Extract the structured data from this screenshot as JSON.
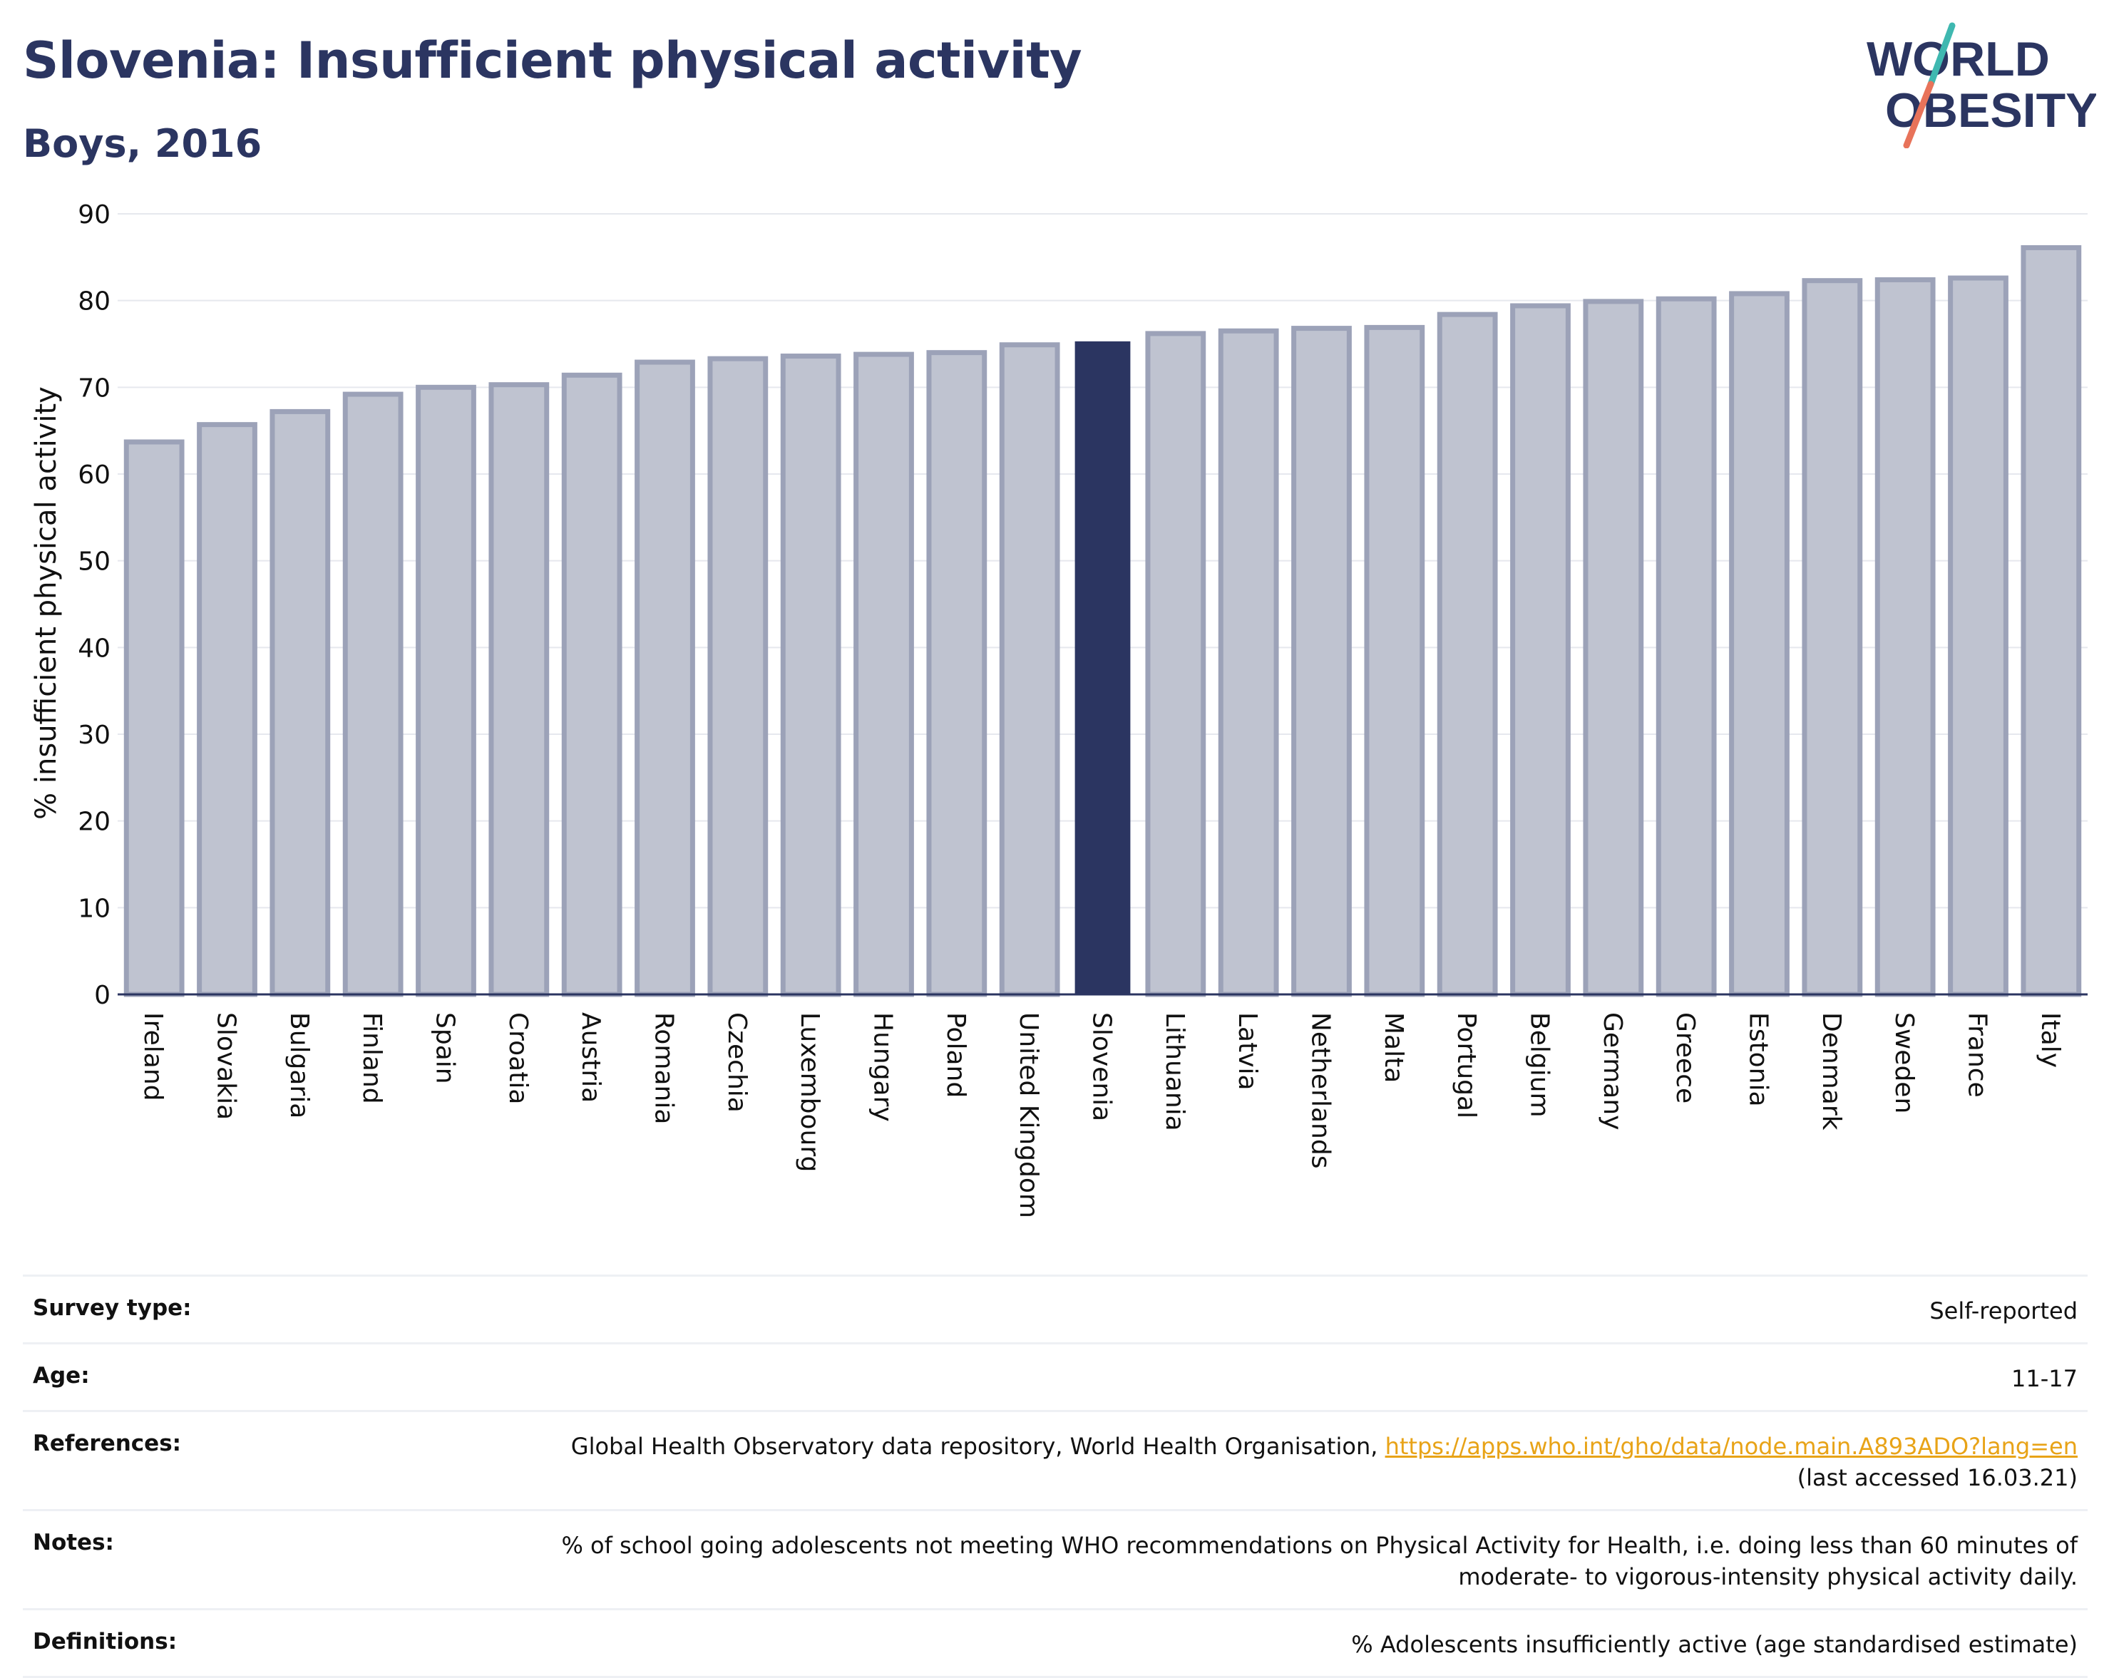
{
  "header": {
    "title": "Slovenia: Insufficient physical activity",
    "subtitle": "Boys, 2016"
  },
  "logo": {
    "line1": "WORLD",
    "line2": "OBESITY"
  },
  "colors": {
    "highlight_bar": "#2b3561",
    "other_bar_fill": "#bfc3d0",
    "other_bar_stroke": "#9ca2b8",
    "text": "#2b3561",
    "link": "#e8a317",
    "logo_teal": "#3fb8b0",
    "logo_coral": "#e8735a"
  },
  "chart_data": {
    "type": "bar",
    "ylabel": "% insufficient physical activity",
    "ylim": [
      0,
      90
    ],
    "yticks": [
      0,
      10,
      20,
      30,
      40,
      50,
      60,
      70,
      80,
      90
    ],
    "grid": true,
    "highlight": "Slovenia",
    "categories": [
      "Ireland",
      "Slovakia",
      "Bulgaria",
      "Finland",
      "Spain",
      "Croatia",
      "Austria",
      "Romania",
      "Czechia",
      "Luxembourg",
      "Hungary",
      "Poland",
      "United Kingdom",
      "Slovenia",
      "Lithuania",
      "Latvia",
      "Netherlands",
      "Malta",
      "Portugal",
      "Belgium",
      "Germany",
      "Greece",
      "Estonia",
      "Denmark",
      "Sweden",
      "France",
      "Italy"
    ],
    "values": [
      63.7,
      65.7,
      67.2,
      69.2,
      70.0,
      70.3,
      71.4,
      72.9,
      73.3,
      73.6,
      73.8,
      74.0,
      74.9,
      75.3,
      76.2,
      76.5,
      76.8,
      76.9,
      78.4,
      79.4,
      79.9,
      80.2,
      80.8,
      82.3,
      82.4,
      82.6,
      86.1
    ]
  },
  "info_table": {
    "survey_type": {
      "label": "Survey type:",
      "value": "Self-reported"
    },
    "age": {
      "label": "Age:",
      "value": "11-17"
    },
    "references": {
      "label": "References:",
      "text": "Global Health Observatory data repository, World Health Organisation,",
      "link": "https://apps.who.int/gho/data/node.main.A893ADO?lang=en",
      "accessed": "(last accessed 16.03.21)"
    },
    "notes": {
      "label": "Notes:",
      "line1": "% of school going adolescents not meeting WHO recommendations on Physical Activity for Health, i.e. doing less than 60 minutes of",
      "line2": "moderate- to vigorous-intensity physical activity daily."
    },
    "definitions": {
      "label": "Definitions:",
      "value": "% Adolescents insufficiently active (age standardised estimate)"
    }
  }
}
